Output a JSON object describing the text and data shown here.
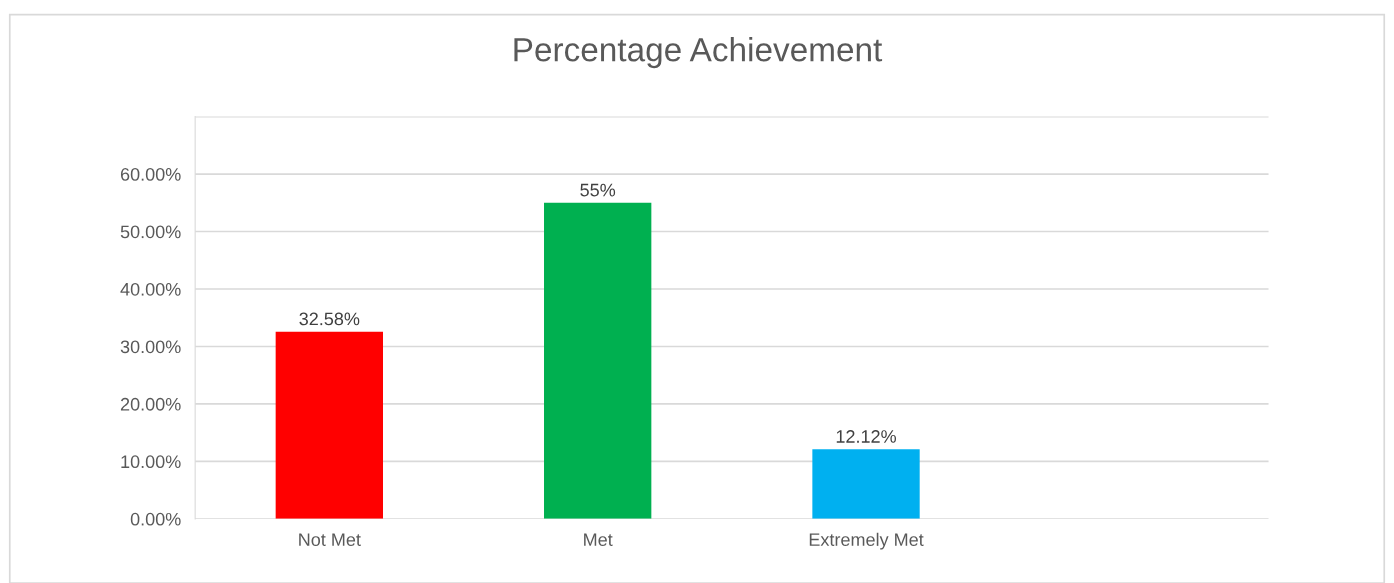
{
  "chart_data": {
    "type": "bar",
    "title": "Percentage Achievement",
    "categories": [
      "Not Met",
      "Met",
      "Extremely Met",
      null
    ],
    "values": [
      32.58,
      55,
      12.12,
      null
    ],
    "colors": [
      "#ff0000",
      "#00b050",
      "#00b0f0",
      "#00b0f0"
    ],
    "value_labels": [
      "32.58%",
      "55%",
      "12.12%",
      null
    ],
    "ylim": [
      0,
      70
    ],
    "yticks": [
      {
        "value": 0,
        "label": "0.00%"
      },
      {
        "value": 10,
        "label": "10.00%"
      },
      {
        "value": 20,
        "label": "20.00%"
      },
      {
        "value": 30,
        "label": "30.00%"
      },
      {
        "value": 40,
        "label": "40.00%"
      },
      {
        "value": 50,
        "label": "50.00%"
      },
      {
        "value": 60,
        "label": "60.00%"
      },
      {
        "value": 70,
        "label": null
      }
    ],
    "grid": "y",
    "legend": false
  }
}
